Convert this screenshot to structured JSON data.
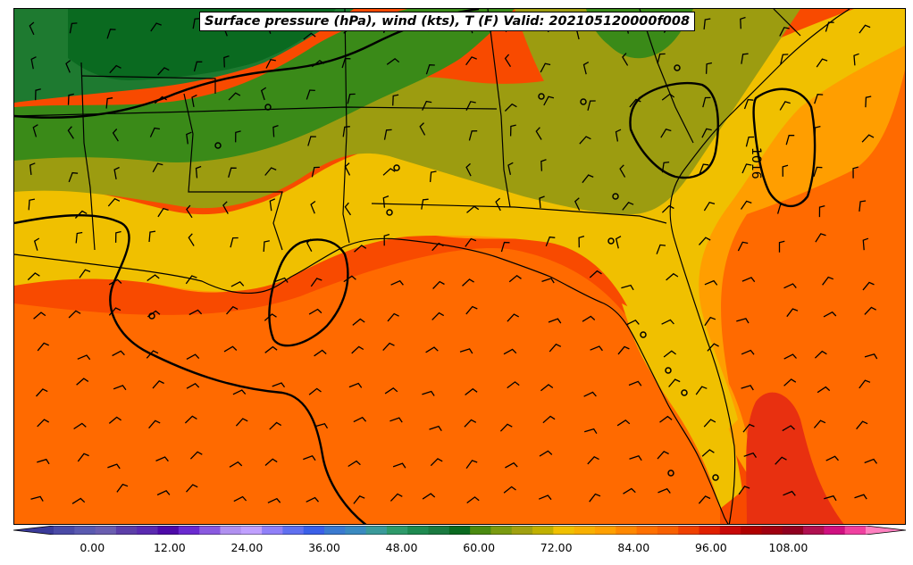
{
  "title": "Surface pressure (hPa), wind (kts), T (F) Valid: 202105120000f008",
  "isobar_label": "1016",
  "temperature_colorbar": {
    "ticks": [
      "0.00",
      "12.00",
      "24.00",
      "36.00",
      "48.00",
      "60.00",
      "72.00",
      "84.00",
      "96.00",
      "108.00"
    ],
    "tick_values": [
      0,
      12,
      24,
      36,
      48,
      60,
      72,
      84,
      96,
      108
    ],
    "range": [
      -6,
      120
    ],
    "extend": "both",
    "colors": [
      "#3a3a9a",
      "#4a4aa6",
      "#5a5ab0",
      "#6a5eb0",
      "#5c3ea8",
      "#5a2ab0",
      "#4d0aa8",
      "#6a2ad0",
      "#8a5ae0",
      "#b090f0",
      "#c0a0ff",
      "#9080f8",
      "#6070f0",
      "#3a60e8",
      "#3a7ad0",
      "#3a8ac0",
      "#3a9a9a",
      "#2e9a6a",
      "#1e8a50",
      "#1a7a40",
      "#0a6a20",
      "#4a8a10",
      "#7a9a10",
      "#a0a010",
      "#c0b000",
      "#f0c000",
      "#f8b000",
      "#ffa000",
      "#ff8800",
      "#ff7000",
      "#f86000",
      "#f04000",
      "#e02000",
      "#c80808",
      "#b00000",
      "#a00010",
      "#900020",
      "#b01050",
      "#d01080",
      "#f040a0",
      "#ff80c0"
    ]
  },
  "temperature_palette": {
    "deep_green": "#0a6a20",
    "dark_green": "#1e7a30",
    "green": "#3a8a18",
    "olive": "#9c9c10",
    "yellow": "#f0c000",
    "light_orange": "#ff9e00",
    "orange": "#ff6a00",
    "deep_orange": "#f84a00",
    "red_orange": "#e83010"
  }
}
